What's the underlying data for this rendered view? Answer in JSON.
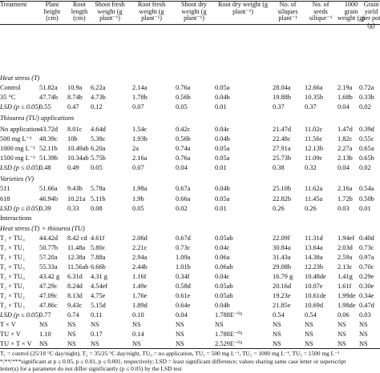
{
  "headers": [
    {
      "key": "treatment",
      "lines": [
        "Treatment"
      ]
    },
    {
      "key": "plant_height",
      "lines": [
        "Plant",
        "height",
        "(cm)"
      ]
    },
    {
      "key": "root_length",
      "lines": [
        "Root",
        "length",
        "(cm)"
      ]
    },
    {
      "key": "shoot_fresh",
      "lines": [
        "Shoot fresh",
        "weight (g",
        "plant⁻¹)"
      ]
    },
    {
      "key": "root_fresh",
      "lines": [
        "Root fresh",
        "weight (g",
        "plant⁻¹)"
      ]
    },
    {
      "key": "shoot_dry",
      "lines": [
        "Shoot dry",
        "weight (g",
        "plant⁻¹)"
      ]
    },
    {
      "key": "root_dry",
      "lines": [
        "Root dry weight (g",
        "plant⁻¹)"
      ]
    },
    {
      "key": "siliques",
      "lines": [
        "No. of",
        "siliques",
        "plant⁻¹"
      ]
    },
    {
      "key": "seeds",
      "lines": [
        "No. of",
        "seeds",
        "silique⁻¹"
      ]
    },
    {
      "key": "grain_1000",
      "lines": [
        "1000 grain",
        "weight (g)"
      ]
    },
    {
      "key": "grain_yield",
      "lines": [
        "Grain yield",
        "per pot (g)"
      ]
    }
  ],
  "rows": [
    {
      "type": "section",
      "label": "Heat stress (T)"
    },
    {
      "type": "data",
      "cells": [
        "Control",
        "51.82a",
        "10.9a",
        "6.22a",
        "2.14a",
        "0.76a",
        "0.05a",
        "28.04a",
        "12.66a",
        "2.19a",
        "0.72a"
      ]
    },
    {
      "type": "data",
      "cells": [
        "35 °C",
        "47.74b",
        "8.74b",
        "4.73b",
        "1.78b",
        "0.56b",
        "0.04b",
        "19.88b",
        "10.35b",
        "1.68b",
        "0.33b"
      ]
    },
    {
      "type": "lsd",
      "cells": [
        "LSD (p ≤ 0.05)",
        "0.55",
        "0.47",
        "0.12",
        "0.07",
        "0.05",
        "0.01",
        "0.37",
        "0.37",
        "0.04",
        "0.02"
      ]
    },
    {
      "type": "section",
      "label": "Thiourea (TU) applications"
    },
    {
      "type": "data",
      "cells": [
        "No application",
        "43.72d",
        "8.01c",
        "4.64d",
        "1.54c",
        "0.42c",
        "0.04c",
        "21.47d",
        "11.02c",
        "1.47d",
        "0.39d"
      ]
    },
    {
      "type": "data",
      "cells": [
        "500 mg L⁻¹",
        "48.39c",
        "10b",
        "5.38c",
        "1.93b",
        "0.56b",
        "0.04b",
        "22.48c",
        "11.56c",
        "1.82c",
        "0.55c"
      ]
    },
    {
      "type": "data",
      "cells": [
        "1000 mg L⁻¹",
        "52.11b",
        "10.49ab",
        "6.20a",
        "2a",
        "0.74a",
        "0.05a",
        "27.91a",
        "12.13b",
        "2.27a",
        "0.65a"
      ]
    },
    {
      "type": "data",
      "cells": [
        "1500 mg L⁻¹",
        "51.39b",
        "10.34ab",
        "5.75b",
        "2.16a",
        "0.76a",
        "0.05a",
        "25.73b",
        "11.09c",
        "2.13b",
        "0.65b"
      ]
    },
    {
      "type": "lsd",
      "cells": [
        "LSD (p ≤ 0.05)",
        "0.48",
        "0.49",
        "0.05",
        "0.07",
        "0.04",
        "0.01",
        "0.38",
        "0.32",
        "0.04",
        "0.02"
      ]
    },
    {
      "type": "section",
      "label": "Varieties (V)"
    },
    {
      "type": "data",
      "cells": [
        "511",
        "51.66a",
        "9.43b",
        "5.78a",
        "1.98a",
        "0.67a",
        "0.04b",
        "25.10b",
        "11.62a",
        "2.16a",
        "0.54a"
      ]
    },
    {
      "type": "data",
      "cells": [
        "618",
        "46.94b",
        "10.21a",
        "5.11b",
        "1.9b",
        "0.66a",
        "0.05a",
        "22.82b",
        "11.45a",
        "1.72b",
        "0.50b"
      ]
    },
    {
      "type": "lsd",
      "cells": [
        "LSD (p ≤ 0.05)",
        "0.39",
        "0.33",
        "0.08",
        "0.05",
        "0.02",
        "0.01",
        "0.26",
        "0.26",
        "0.03",
        "0.01"
      ]
    },
    {
      "type": "section",
      "label": "Interactions",
      "plain": true
    },
    {
      "type": "section",
      "label": "Heat stress (T) × thiourea (TU)"
    },
    {
      "type": "data",
      "cells": [
        "T₁ × TU₀",
        "44.42d",
        "8.42 cd",
        "4.61f",
        "2.06d",
        "0.67d",
        "0.05ab",
        "22.09f",
        "11.31d",
        "1.94ef",
        "0.40d"
      ]
    },
    {
      "type": "data",
      "cells": [
        "T₁ × TU₁",
        "50.77b",
        "11.48a",
        "5.80c",
        "2.21c",
        "0.73c",
        "0.04c",
        "30.84a",
        "13.64a",
        "2.03d",
        "0.73c"
      ]
    },
    {
      "type": "data",
      "cells": [
        "T₁ × TU₂",
        "57.20a",
        "12.38a",
        "7.88a",
        "2.94a",
        "1.09a",
        "0.06a",
        "31.43a",
        "14.38a",
        "2.59a",
        "0.97a"
      ]
    },
    {
      "type": "data",
      "cells": [
        "T₁ × TU₃",
        "55.33a",
        "11.56ab",
        "6.66b",
        "2.44b",
        "1.01b",
        "0.06ab",
        "29.08b",
        "12.23b",
        "2.13c",
        "0.70c"
      ]
    },
    {
      "type": "data",
      "cells": [
        "T₂ × TU₀",
        "43.42 g",
        "6.31d",
        "4.31 g",
        "1.16f",
        "0.34f",
        "0.04c",
        "16.79 g",
        "10.48de",
        "1.41g",
        "0.29e"
      ]
    },
    {
      "type": "data",
      "cells": [
        "T₂ × TU₁",
        "47.29c",
        "8.24d",
        "4.54ef",
        "1.49e",
        "0.58d",
        "0.05ab",
        "20.16d",
        "10.07e",
        "1.61f",
        "0.30e"
      ]
    },
    {
      "type": "data",
      "cells": [
        "T₂ × TU₂",
        "47.09c",
        "8.13d",
        "4.75e",
        "1.76e",
        "0.61e",
        "0.05ab",
        "19.23e",
        "10.61de",
        "1.99de",
        "0.34e"
      ]
    },
    {
      "type": "data",
      "cells": [
        "T₂ × TU₃",
        "47.86c",
        "9.43c",
        "5.15d",
        "1.89d",
        "0.64e",
        "0.04b",
        "21.85e",
        "10.69d",
        "1.98de",
        "0.47d"
      ]
    },
    {
      "type": "lsd",
      "cells": [
        "LSD (p ≤ 0.05)",
        "0.77",
        "0.74",
        "0.11",
        "0.10",
        "0.04",
        "1.788E⁻⁰³",
        "0.54",
        "0.54",
        "0.06",
        "0.03"
      ]
    },
    {
      "type": "data",
      "cells": [
        "T × V",
        "NS",
        "NS",
        "NS",
        "NS",
        "NS",
        "NS",
        "NS",
        "NS",
        "NS",
        "NS"
      ]
    },
    {
      "type": "data",
      "cells": [
        "TU × V",
        "1.10",
        "NS",
        "0.17",
        "0.14",
        "NS",
        "1.788E⁻⁰³",
        "NS",
        "NS",
        "NS",
        "NS"
      ]
    },
    {
      "type": "data",
      "cells": [
        "TU × T × V",
        "NS",
        "NS",
        "NS",
        "NS",
        "NS",
        "2.529E⁻⁰³",
        "NS",
        "NS",
        "NS",
        "NS"
      ]
    }
  ],
  "footnotes": [
    "T₁ = control (25/18 °C day/night), T₂ = 35/25 °C day/night, TU₀ = no application, TU₁ = 500 mg L⁻¹, TU₂ = 1000 mg L⁻¹, TU₃ = 1500 mg L⁻¹",
    "*/**/***significant at p ≤ 0.05, p ≤ 0.01, p ≤ 0.001, respectively; LSD = least significant difference; values sharing same case letter or superscript",
    "letter(s) for a parameter do not differ significantly (p ≤ 0.05) by the LSD test"
  ]
}
